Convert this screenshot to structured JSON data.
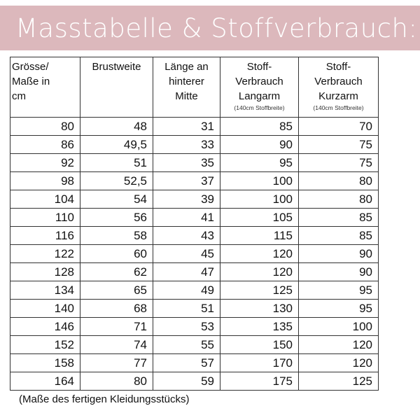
{
  "header": {
    "title": "Masstabelle & Stoffverbrauch:"
  },
  "table": {
    "columns": [
      {
        "lines": [
          "Grösse/",
          "Maße in",
          "cm"
        ],
        "note": ""
      },
      {
        "lines": [
          "Brustweite"
        ],
        "note": ""
      },
      {
        "lines": [
          "Länge an",
          "hinterer",
          "Mitte"
        ],
        "note": ""
      },
      {
        "lines": [
          "Stoff-",
          "Verbrauch",
          "Langarm"
        ],
        "note": "(140cm Stoffbreite)"
      },
      {
        "lines": [
          "Stoff-",
          "Verbrauch",
          "Kurzarm"
        ],
        "note": "(140cm Stoffbreite)"
      }
    ],
    "rows": [
      [
        "80",
        "48",
        "31",
        "85",
        "70"
      ],
      [
        "86",
        "49,5",
        "33",
        "90",
        "75"
      ],
      [
        "92",
        "51",
        "35",
        "95",
        "75"
      ],
      [
        "98",
        "52,5",
        "37",
        "100",
        "80"
      ],
      [
        "104",
        "54",
        "39",
        "100",
        "80"
      ],
      [
        "110",
        "56",
        "41",
        "105",
        "85"
      ],
      [
        "116",
        "58",
        "43",
        "115",
        "85"
      ],
      [
        "122",
        "60",
        "45",
        "120",
        "90"
      ],
      [
        "128",
        "62",
        "47",
        "120",
        "90"
      ],
      [
        "134",
        "65",
        "49",
        "125",
        "95"
      ],
      [
        "140",
        "68",
        "51",
        "130",
        "95"
      ],
      [
        "146",
        "71",
        "53",
        "135",
        "100"
      ],
      [
        "152",
        "74",
        "55",
        "150",
        "120"
      ],
      [
        "158",
        "77",
        "57",
        "170",
        "120"
      ],
      [
        "164",
        "80",
        "59",
        "175",
        "125"
      ]
    ]
  },
  "footnote": "(Maße des fertigen Kleidungsstücks)",
  "colors": {
    "banner_background": "#dcb8bc",
    "banner_text": "#ffffff",
    "grid_lines": "#333333"
  }
}
